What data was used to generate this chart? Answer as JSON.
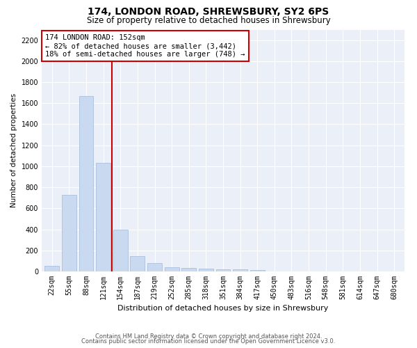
{
  "title1": "174, LONDON ROAD, SHREWSBURY, SY2 6PS",
  "title2": "Size of property relative to detached houses in Shrewsbury",
  "xlabel": "Distribution of detached houses by size in Shrewsbury",
  "ylabel": "Number of detached properties",
  "categories": [
    "22sqm",
    "55sqm",
    "88sqm",
    "121sqm",
    "154sqm",
    "187sqm",
    "219sqm",
    "252sqm",
    "285sqm",
    "318sqm",
    "351sqm",
    "384sqm",
    "417sqm",
    "450sqm",
    "483sqm",
    "516sqm",
    "548sqm",
    "581sqm",
    "614sqm",
    "647sqm",
    "680sqm"
  ],
  "values": [
    50,
    730,
    1670,
    1030,
    400,
    145,
    80,
    40,
    30,
    25,
    20,
    20,
    15,
    0,
    0,
    0,
    0,
    0,
    0,
    0,
    0
  ],
  "bar_color": "#c9d9f0",
  "bar_edgecolor": "#a0b8d8",
  "vline_color": "#cc0000",
  "annotation_text": "174 LONDON ROAD: 152sqm\n← 82% of detached houses are smaller (3,442)\n18% of semi-detached houses are larger (748) →",
  "annotation_box_color": "#ffffff",
  "annotation_box_edgecolor": "#cc0000",
  "ylim": [
    0,
    2300
  ],
  "yticks": [
    0,
    200,
    400,
    600,
    800,
    1000,
    1200,
    1400,
    1600,
    1800,
    2000,
    2200
  ],
  "bg_color": "#eaeff8",
  "footer1": "Contains HM Land Registry data © Crown copyright and database right 2024.",
  "footer2": "Contains public sector information licensed under the Open Government Licence v3.0.",
  "title1_fontsize": 10,
  "title2_fontsize": 8.5,
  "xlabel_fontsize": 8,
  "ylabel_fontsize": 7.5,
  "tick_fontsize": 7,
  "annotation_fontsize": 7.5,
  "footer_fontsize": 6
}
